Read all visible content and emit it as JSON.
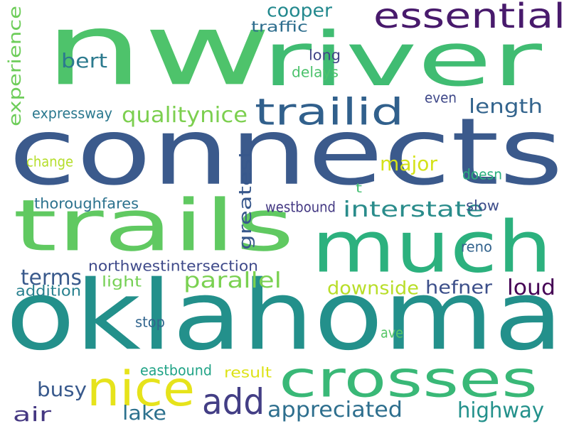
{
  "words": [
    {
      "text": "nw",
      "color": "#4ec36b"
    },
    {
      "text": "connects",
      "color": "#3b5a8c"
    },
    {
      "text": "oklahoma",
      "color": "#23908b"
    },
    {
      "text": "river",
      "color": "#40bc72"
    },
    {
      "text": "much",
      "color": "#2cb17e"
    },
    {
      "text": "trails",
      "color": "#60c961"
    },
    {
      "text": "crosses",
      "color": "#39b877"
    },
    {
      "text": "essential",
      "color": "#481a6c"
    },
    {
      "text": "trailid",
      "color": "#31608c"
    },
    {
      "text": "nice",
      "color": "#e6e31b"
    },
    {
      "text": "add",
      "color": "#433e85"
    },
    {
      "text": "interstate",
      "color": "#2a8c8b"
    },
    {
      "text": "appreciated",
      "color": "#2e6f8e"
    },
    {
      "text": "greatest",
      "color": "#38588c"
    },
    {
      "text": "parallel",
      "color": "#7ad151"
    },
    {
      "text": "highway",
      "color": "#23918b"
    },
    {
      "text": "qualitynice",
      "color": "#7ccf4f"
    },
    {
      "text": "experience",
      "color": "#6ecd5a"
    },
    {
      "text": "length",
      "color": "#33648d"
    },
    {
      "text": "cooper",
      "color": "#23898e"
    },
    {
      "text": "bert",
      "color": "#2b7a8e"
    },
    {
      "text": "terms",
      "color": "#3a5a8c"
    },
    {
      "text": "downside",
      "color": "#b8de29"
    },
    {
      "text": "hefner",
      "color": "#3c4f8a"
    },
    {
      "text": "loud",
      "color": "#440154"
    },
    {
      "text": "major",
      "color": "#d4e21a"
    },
    {
      "text": "busy",
      "color": "#38598c"
    },
    {
      "text": "lake",
      "color": "#2c718e"
    },
    {
      "text": "air",
      "color": "#453882"
    },
    {
      "text": "traffic",
      "color": "#2e6e8e"
    },
    {
      "text": "long",
      "color": "#414487"
    },
    {
      "text": "delays",
      "color": "#4cc26c"
    },
    {
      "text": "expressway",
      "color": "#2a788e"
    },
    {
      "text": "even",
      "color": "#3f4889"
    },
    {
      "text": "change",
      "color": "#b5de2b"
    },
    {
      "text": "doesn",
      "color": "#2bb07f"
    },
    {
      "text": "t",
      "color": "#42be71"
    },
    {
      "text": "thoroughfares",
      "color": "#2c728e"
    },
    {
      "text": "westbound",
      "color": "#443983"
    },
    {
      "text": "slow",
      "color": "#3d4d8a"
    },
    {
      "text": "reno",
      "color": "#33638d"
    },
    {
      "text": "northwestintersection",
      "color": "#3f4a8a"
    },
    {
      "text": "addition",
      "color": "#27808e"
    },
    {
      "text": "light",
      "color": "#75d054"
    },
    {
      "text": "stop",
      "color": "#32658e"
    },
    {
      "text": "ave",
      "color": "#56c667"
    },
    {
      "text": "eastbound",
      "color": "#20a386"
    },
    {
      "text": "result",
      "color": "#dde318"
    }
  ]
}
